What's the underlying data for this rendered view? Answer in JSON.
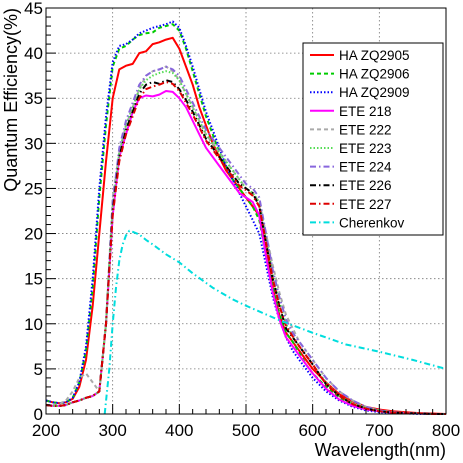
{
  "chart_data": {
    "type": "line",
    "title": "",
    "xlabel": "Wavelength(nm)",
    "ylabel": "Quantum Efficiency(%)",
    "xlim": [
      200,
      800
    ],
    "ylim": [
      0,
      45
    ],
    "xticks": [
      200,
      300,
      400,
      500,
      600,
      700,
      800
    ],
    "yticks": [
      0,
      5,
      10,
      15,
      20,
      25,
      30,
      35,
      40,
      45
    ],
    "grid": true,
    "legend_position": "top-right",
    "series": [
      {
        "name": "HA ZQ2905",
        "color": "#ff0000",
        "dash": "solid",
        "x": [
          200,
          210,
          220,
          230,
          240,
          250,
          260,
          270,
          280,
          290,
          300,
          310,
          320,
          330,
          340,
          350,
          360,
          370,
          380,
          390,
          400,
          410,
          420,
          430,
          440,
          450,
          460,
          470,
          480,
          490,
          500,
          510,
          520,
          530,
          540,
          550,
          560,
          570,
          580,
          590,
          600,
          620,
          640,
          660,
          680,
          700,
          720,
          740,
          760,
          780,
          800
        ],
        "y": [
          1.5,
          1.3,
          1.2,
          1.3,
          1.7,
          3.0,
          6.0,
          12.0,
          20.0,
          28.0,
          35.0,
          38.2,
          38.6,
          38.8,
          40.0,
          40.2,
          41.0,
          41.2,
          41.5,
          41.7,
          40.5,
          38.5,
          36.5,
          34.0,
          32.0,
          30.0,
          28.5,
          27.0,
          26.0,
          25.0,
          24.0,
          23.0,
          22.0,
          18.0,
          14.0,
          11.0,
          9.0,
          8.0,
          7.0,
          6.0,
          5.0,
          3.5,
          2.2,
          1.4,
          0.8,
          0.5,
          0.3,
          0.2,
          0.1,
          0.05,
          0.0
        ]
      },
      {
        "name": "HA ZQ2906",
        "color": "#00cc00",
        "dash": "dash",
        "x": [
          200,
          210,
          220,
          230,
          240,
          250,
          260,
          270,
          280,
          290,
          300,
          310,
          320,
          330,
          340,
          350,
          360,
          370,
          380,
          390,
          400,
          410,
          420,
          430,
          440,
          450,
          460,
          470,
          480,
          490,
          500,
          510,
          520,
          530,
          540,
          550,
          560,
          570,
          580,
          590,
          600,
          620,
          640,
          660,
          680,
          700,
          720,
          740,
          760,
          780,
          800
        ],
        "y": [
          1.5,
          1.3,
          1.2,
          1.3,
          1.8,
          3.5,
          7.0,
          14.0,
          24.0,
          32.0,
          38.5,
          40.5,
          40.8,
          41.5,
          42.0,
          42.2,
          42.3,
          42.8,
          43.0,
          43.2,
          42.5,
          40.5,
          38.0,
          35.5,
          33.0,
          31.0,
          29.0,
          27.5,
          26.0,
          25.0,
          24.0,
          23.0,
          21.5,
          17.5,
          14.0,
          11.0,
          9.0,
          8.0,
          6.8,
          5.5,
          4.5,
          3.0,
          1.8,
          1.0,
          0.6,
          0.3,
          0.15,
          0.1,
          0.05,
          0.0,
          0.0
        ]
      },
      {
        "name": "HA ZQ2909",
        "color": "#0000ff",
        "dash": "dot",
        "x": [
          200,
          210,
          220,
          230,
          240,
          250,
          260,
          270,
          280,
          290,
          300,
          310,
          320,
          330,
          340,
          350,
          360,
          370,
          380,
          390,
          400,
          410,
          420,
          430,
          440,
          450,
          460,
          470,
          480,
          490,
          500,
          510,
          520,
          530,
          540,
          550,
          560,
          570,
          580,
          590,
          600,
          620,
          640,
          660,
          680,
          700,
          720,
          740,
          760,
          780,
          800
        ],
        "y": [
          1.5,
          1.3,
          1.2,
          1.3,
          1.8,
          3.5,
          7.5,
          15.0,
          25.0,
          33.0,
          39.0,
          40.8,
          41.0,
          41.5,
          42.2,
          42.5,
          42.8,
          43.0,
          43.2,
          43.5,
          42.8,
          40.8,
          38.5,
          36.0,
          33.5,
          31.5,
          29.5,
          27.5,
          26.0,
          24.5,
          23.0,
          21.5,
          20.0,
          16.5,
          13.0,
          10.5,
          8.5,
          7.0,
          6.0,
          5.0,
          4.0,
          2.5,
          1.5,
          0.8,
          0.4,
          0.2,
          0.1,
          0.05,
          0.0,
          0.0,
          0.0
        ]
      },
      {
        "name": "ETE 218",
        "color": "#ff00ff",
        "dash": "solid",
        "x": [
          200,
          210,
          220,
          230,
          240,
          250,
          260,
          270,
          280,
          290,
          300,
          310,
          320,
          330,
          340,
          350,
          360,
          370,
          380,
          390,
          400,
          410,
          420,
          430,
          440,
          450,
          460,
          470,
          480,
          490,
          500,
          510,
          520,
          530,
          540,
          550,
          560,
          570,
          580,
          590,
          600,
          620,
          640,
          660,
          680,
          700,
          720,
          740,
          760,
          780,
          800
        ],
        "y": [
          1.0,
          0.9,
          0.9,
          1.0,
          1.3,
          1.5,
          1.8,
          2.0,
          2.5,
          10.0,
          22.0,
          28.5,
          31.0,
          33.5,
          35.0,
          35.3,
          35.2,
          35.4,
          35.8,
          35.7,
          35.0,
          34.0,
          32.5,
          31.0,
          29.5,
          28.5,
          27.5,
          26.5,
          25.5,
          24.5,
          24.0,
          23.5,
          22.0,
          17.5,
          13.5,
          10.5,
          8.5,
          7.5,
          6.5,
          5.5,
          4.5,
          2.8,
          1.6,
          0.9,
          0.5,
          0.3,
          0.15,
          0.1,
          0.05,
          0.0,
          0.0
        ]
      },
      {
        "name": "ETE 222",
        "color": "#aaaaaa",
        "dash": "dash",
        "x": [
          200,
          210,
          220,
          230,
          240,
          250,
          260,
          270,
          280,
          290,
          300,
          310,
          320,
          330,
          340,
          350,
          360,
          370,
          380,
          390,
          400,
          410,
          420,
          430,
          440,
          450,
          460,
          470,
          480,
          490,
          500,
          510,
          520,
          530,
          540,
          550,
          560,
          570,
          580,
          590,
          600,
          620,
          640,
          660,
          680,
          700,
          720,
          740,
          760,
          780,
          800
        ],
        "y": [
          1.0,
          1.0,
          1.1,
          1.5,
          2.5,
          4.0,
          4.5,
          3.5,
          2.5,
          10.0,
          24.0,
          29.0,
          32.0,
          34.0,
          36.0,
          37.5,
          38.0,
          38.2,
          38.5,
          38.0,
          37.0,
          35.5,
          34.0,
          32.5,
          31.0,
          30.0,
          29.0,
          28.0,
          27.0,
          26.0,
          25.0,
          24.5,
          23.5,
          20.0,
          16.5,
          13.5,
          11.0,
          9.5,
          8.0,
          7.0,
          6.0,
          4.0,
          2.5,
          1.5,
          0.8,
          0.4,
          0.2,
          0.1,
          0.05,
          0.0,
          0.0
        ]
      },
      {
        "name": "ETE 223",
        "color": "#55dd55",
        "dash": "dot",
        "x": [
          200,
          210,
          220,
          230,
          240,
          250,
          260,
          270,
          280,
          290,
          300,
          310,
          320,
          330,
          340,
          350,
          360,
          370,
          380,
          390,
          400,
          410,
          420,
          430,
          440,
          450,
          460,
          470,
          480,
          490,
          500,
          510,
          520,
          530,
          540,
          550,
          560,
          570,
          580,
          590,
          600,
          620,
          640,
          660,
          680,
          700,
          720,
          740,
          760,
          780,
          800
        ],
        "y": [
          1.0,
          0.9,
          0.9,
          1.0,
          1.3,
          1.5,
          1.8,
          2.0,
          2.5,
          10.0,
          23.0,
          29.0,
          32.0,
          34.0,
          36.0,
          37.0,
          37.5,
          37.8,
          38.0,
          37.8,
          37.0,
          35.5,
          34.0,
          32.5,
          31.0,
          30.0,
          29.0,
          28.0,
          27.0,
          26.0,
          25.0,
          24.5,
          23.5,
          19.5,
          15.5,
          12.5,
          10.0,
          8.5,
          7.5,
          6.5,
          5.5,
          3.5,
          2.0,
          1.2,
          0.7,
          0.4,
          0.2,
          0.1,
          0.05,
          0.0,
          0.0
        ]
      },
      {
        "name": "ETE 224",
        "color": "#8866dd",
        "dash": "dashdot",
        "x": [
          200,
          210,
          220,
          230,
          240,
          250,
          260,
          270,
          280,
          290,
          300,
          310,
          320,
          330,
          340,
          350,
          360,
          370,
          380,
          390,
          400,
          410,
          420,
          430,
          440,
          450,
          460,
          470,
          480,
          490,
          500,
          510,
          520,
          530,
          540,
          550,
          560,
          570,
          580,
          590,
          600,
          620,
          640,
          660,
          680,
          700,
          720,
          740,
          760,
          780,
          800
        ],
        "y": [
          1.0,
          0.9,
          0.9,
          1.0,
          1.3,
          1.5,
          1.8,
          2.0,
          2.5,
          10.0,
          23.5,
          29.5,
          32.5,
          34.5,
          36.5,
          37.5,
          38.0,
          38.2,
          38.5,
          38.2,
          37.5,
          36.0,
          34.5,
          33.0,
          31.5,
          30.5,
          29.5,
          28.5,
          27.5,
          26.5,
          25.5,
          25.0,
          24.0,
          20.0,
          16.0,
          13.0,
          10.5,
          9.0,
          8.0,
          7.0,
          6.0,
          4.0,
          2.5,
          1.5,
          0.8,
          0.4,
          0.2,
          0.1,
          0.05,
          0.0,
          0.0
        ]
      },
      {
        "name": "ETE 226",
        "color": "#000000",
        "dash": "dashdot",
        "x": [
          200,
          210,
          220,
          230,
          240,
          250,
          260,
          270,
          280,
          290,
          300,
          310,
          320,
          330,
          340,
          350,
          360,
          370,
          380,
          390,
          400,
          410,
          420,
          430,
          440,
          450,
          460,
          470,
          480,
          490,
          500,
          510,
          520,
          530,
          540,
          550,
          560,
          570,
          580,
          590,
          600,
          620,
          640,
          660,
          680,
          700,
          720,
          740,
          760,
          780,
          800
        ],
        "y": [
          1.0,
          0.9,
          0.9,
          1.0,
          1.3,
          1.5,
          1.8,
          2.0,
          2.5,
          10.0,
          22.5,
          28.5,
          31.5,
          33.5,
          35.5,
          36.5,
          36.8,
          36.6,
          37.0,
          36.8,
          36.0,
          34.8,
          33.5,
          32.0,
          30.5,
          29.5,
          28.5,
          27.5,
          26.5,
          25.5,
          25.0,
          24.5,
          23.0,
          19.0,
          15.0,
          12.0,
          9.5,
          8.5,
          7.5,
          6.5,
          5.5,
          3.3,
          2.0,
          1.1,
          0.6,
          0.3,
          0.15,
          0.1,
          0.05,
          0.0,
          0.0
        ]
      },
      {
        "name": "ETE 227",
        "color": "#dd0000",
        "dash": "dashdot",
        "x": [
          200,
          210,
          220,
          230,
          240,
          250,
          260,
          270,
          280,
          290,
          300,
          310,
          320,
          330,
          340,
          350,
          360,
          370,
          380,
          390,
          400,
          410,
          420,
          430,
          440,
          450,
          460,
          470,
          480,
          490,
          500,
          510,
          520,
          530,
          540,
          550,
          560,
          570,
          580,
          590,
          600,
          620,
          640,
          660,
          680,
          700,
          720,
          740,
          760,
          780,
          800
        ],
        "y": [
          1.0,
          0.9,
          0.9,
          1.0,
          1.3,
          1.5,
          1.8,
          2.0,
          2.5,
          10.0,
          22.0,
          28.0,
          31.0,
          33.0,
          35.0,
          36.0,
          36.3,
          36.5,
          36.8,
          36.6,
          35.8,
          34.5,
          33.2,
          31.8,
          30.3,
          29.3,
          28.3,
          27.3,
          26.3,
          25.3,
          24.8,
          24.2,
          23.0,
          19.0,
          15.0,
          12.0,
          9.8,
          8.6,
          7.5,
          6.5,
          5.5,
          3.3,
          2.0,
          1.1,
          0.6,
          0.3,
          0.15,
          0.1,
          0.05,
          0.0,
          0.0
        ]
      },
      {
        "name": "Cherenkov",
        "color": "#00dddd",
        "dash": "dashdot",
        "x": [
          288,
          295,
          300,
          305,
          310,
          315,
          320,
          325,
          330,
          340,
          350,
          360,
          380,
          400,
          420,
          450,
          480,
          500,
          550,
          600,
          650,
          700,
          750,
          800
        ],
        "y": [
          0,
          5.0,
          10.0,
          14.0,
          17.0,
          18.8,
          19.8,
          20.3,
          20.2,
          19.9,
          19.3,
          18.8,
          17.7,
          16.8,
          15.6,
          14.0,
          12.7,
          12.0,
          10.4,
          9.0,
          7.7,
          6.9,
          6.0,
          5.0
        ]
      }
    ]
  }
}
